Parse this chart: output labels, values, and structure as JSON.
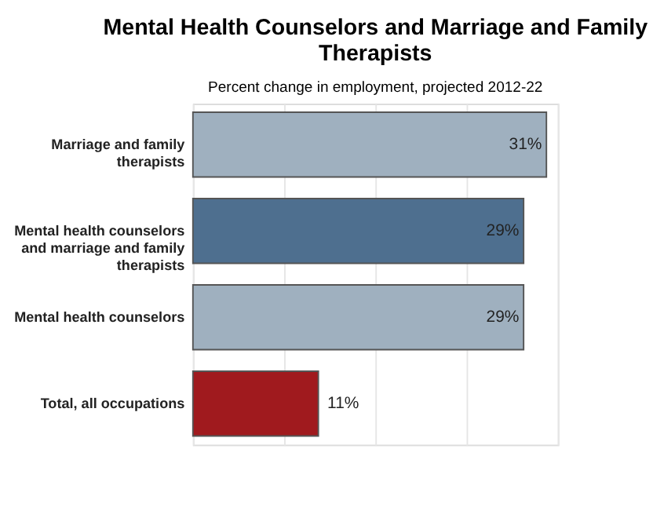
{
  "chart_data": {
    "type": "bar",
    "orientation": "horizontal",
    "title": "Mental Health Counselors and Marriage and Family Therapists",
    "subtitle": "Percent change in employment, projected 2012-22",
    "categories": [
      "Marriage and family therapists",
      "Mental health counselors and marriage and family therapists",
      "Mental health counselors",
      "Total, all occupations"
    ],
    "values": [
      31,
      29,
      29,
      11
    ],
    "colors": [
      "#9fb0bf",
      "#4e6f8f",
      "#9fb0bf",
      "#a01a1e"
    ],
    "value_labels": [
      "31%",
      "29%",
      "29%",
      "11%"
    ],
    "xlim": [
      0,
      32
    ],
    "xticks": [
      {
        "value": 0,
        "label": null
      },
      {
        "value": 8,
        "label": null
      },
      {
        "value": 16,
        "label": null
      },
      {
        "value": 24,
        "label": null
      },
      {
        "value": 32,
        "label": null
      }
    ],
    "grid": "x",
    "tick_labels": "y"
  }
}
